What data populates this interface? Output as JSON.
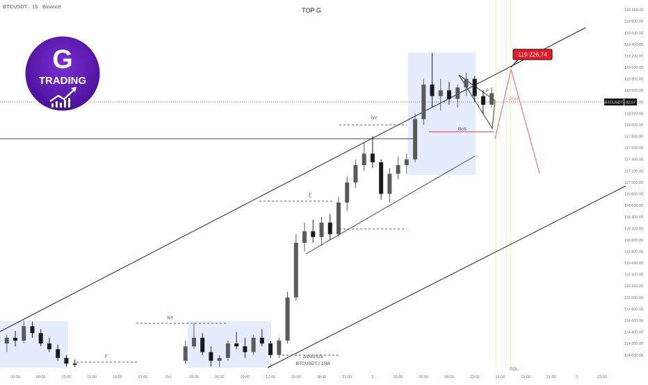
{
  "chart_data": {
    "type": "candlestick",
    "title": "TOP G",
    "symbol_label": "BTCUSDT · 15 · Binance",
    "up_color": "#5a5a5a",
    "down_color": "#1a1a1a",
    "x": [
      5,
      6,
      7,
      8,
      9,
      10,
      11,
      12,
      13,
      26,
      27,
      28,
      29,
      30,
      31,
      32,
      33,
      34,
      35,
      36,
      37,
      38,
      39,
      40,
      41,
      42,
      43,
      44,
      45,
      46,
      47,
      48,
      49,
      50,
      51,
      52,
      53,
      54,
      55,
      56,
      57,
      58,
      59,
      60,
      61,
      62
    ],
    "open": [
      114200,
      114300,
      114250,
      114500,
      114380,
      114200,
      114100,
      113950,
      113850,
      113900,
      114150,
      114300,
      114050,
      113900,
      113950,
      114200,
      114150,
      114050,
      114300,
      114200,
      114000,
      114250,
      115000,
      115950,
      116150,
      116050,
      116300,
      116100,
      116650,
      117000,
      117300,
      117500,
      117350,
      116800,
      117150,
      117300,
      117400,
      118100,
      118700,
      118500,
      118600,
      118450,
      118650,
      118800,
      118500,
      118350
    ],
    "high": [
      114350,
      114420,
      114600,
      114580,
      114450,
      114300,
      114180,
      114000,
      113920,
      114250,
      114560,
      114380,
      114150,
      114000,
      114250,
      114400,
      114300,
      114350,
      114450,
      114250,
      114300,
      115100,
      116100,
      116300,
      116350,
      116400,
      116450,
      116750,
      117100,
      117400,
      117700,
      117800,
      117400,
      117250,
      117450,
      117500,
      118200,
      118800,
      119250,
      118800,
      118750,
      118700,
      118900,
      118850,
      118600,
      118650
    ],
    "low": [
      114050,
      114150,
      114200,
      114300,
      114150,
      114050,
      113900,
      113800,
      113790,
      113850,
      114100,
      114000,
      113800,
      113790,
      113900,
      114100,
      113950,
      114000,
      114150,
      113950,
      113950,
      114200,
      114950,
      115800,
      115950,
      115900,
      116000,
      116050,
      116500,
      116900,
      117200,
      117250,
      116700,
      116650,
      117050,
      117150,
      117350,
      118000,
      118300,
      118250,
      118350,
      118300,
      118500,
      118400,
      118200,
      118300
    ],
    "close": [
      114300,
      114250,
      114500,
      114380,
      114200,
      114100,
      113950,
      113850,
      113830,
      114150,
      114300,
      114050,
      113900,
      113950,
      114200,
      114150,
      114050,
      114300,
      114200,
      114000,
      114250,
      115000,
      115950,
      116150,
      116050,
      116300,
      116100,
      116650,
      117000,
      117300,
      117500,
      117350,
      116800,
      117150,
      117300,
      117400,
      118100,
      118700,
      118500,
      118600,
      118450,
      118650,
      118800,
      118500,
      118350,
      118550
    ],
    "xlim": [
      4.2,
      74.9
    ],
    "xticks": [
      {
        "value": 6,
        "label": "06:00"
      },
      {
        "value": 9,
        "label": "09:00"
      },
      {
        "value": 12,
        "label": "12:00"
      },
      {
        "value": 15,
        "label": "15:00"
      },
      {
        "value": 18,
        "label": "18:00"
      },
      {
        "value": 21,
        "label": "21:00"
      },
      {
        "value": 24,
        "label": "Oct"
      },
      {
        "value": 27,
        "label": "03:00"
      },
      {
        "value": 30,
        "label": "06:00"
      },
      {
        "value": 33,
        "label": "09:00"
      },
      {
        "value": 36,
        "label": "12:00"
      },
      {
        "value": 39,
        "label": "15:00"
      },
      {
        "value": 42,
        "label": "18:00"
      },
      {
        "value": 45,
        "label": "21:00"
      },
      {
        "value": 48,
        "label": "2"
      },
      {
        "value": 51,
        "label": "03:00"
      },
      {
        "value": 54,
        "label": "06:00"
      },
      {
        "value": 57,
        "label": "09:00"
      },
      {
        "value": 60,
        "label": "12:00"
      },
      {
        "value": 63,
        "label": "15:00"
      },
      {
        "value": 66,
        "label": "18:00"
      },
      {
        "value": 69,
        "label": "21:00"
      },
      {
        "value": 72,
        "label": "3"
      },
      {
        "value": 75,
        "label": "03:00"
      }
    ],
    "ylim": [
      113780,
      120170
    ],
    "yticks": [
      {
        "value": 114000,
        "label": "114 000.00"
      },
      {
        "value": 114200,
        "label": "114 200.00"
      },
      {
        "value": 114400,
        "label": "114 400.00"
      },
      {
        "value": 114600,
        "label": "114 600.00"
      },
      {
        "value": 114800,
        "label": "114 800.00"
      },
      {
        "value": 115000,
        "label": "115 000.00"
      },
      {
        "value": 115200,
        "label": "115 200.00"
      },
      {
        "value": 115400,
        "label": "115 400.00"
      },
      {
        "value": 115600,
        "label": "115 600.00"
      },
      {
        "value": 115800,
        "label": "115 800.00"
      },
      {
        "value": 116000,
        "label": "116 000.00"
      },
      {
        "value": 116200,
        "label": "116 200.00"
      },
      {
        "value": 116400,
        "label": "116 400.00"
      },
      {
        "value": 116600,
        "label": "116 600.00"
      },
      {
        "value": 116800,
        "label": "116 800.00"
      },
      {
        "value": 117000,
        "label": "117 000.00"
      },
      {
        "value": 117200,
        "label": "117 200.00"
      },
      {
        "value": 117400,
        "label": "117 400.00"
      },
      {
        "value": 117600,
        "label": "117 600.00"
      },
      {
        "value": 117800,
        "label": "117 800.00"
      },
      {
        "value": 118000,
        "label": "118 000.00"
      },
      {
        "value": 118200,
        "label": "118 200.00"
      },
      {
        "value": 118400,
        "label": "118 400.00"
      },
      {
        "value": 118600,
        "label": "118 600.00"
      },
      {
        "value": 118800,
        "label": "118 800.00"
      },
      {
        "value": 119000,
        "label": "119 000.00"
      },
      {
        "value": 119200,
        "label": "119 200.00"
      },
      {
        "value": 119400,
        "label": "119 400.00"
      },
      {
        "value": 119600,
        "label": "119 600.00"
      },
      {
        "value": 119800,
        "label": "119 800.00"
      },
      {
        "value": 120000,
        "label": "120 000.00"
      }
    ],
    "target_label": {
      "value": 119226.74,
      "label": "119 226,74"
    },
    "price_tag": {
      "symbol": "BTCUSDT",
      "countdown": "02:07"
    },
    "annotations": {
      "ny_1": "NY",
      "ny_2": "NY",
      "f_1": "F",
      "f_2": "F",
      "bos": "BoS",
      "pdh": "PDH",
      "pdl": "PDL",
      "eq": "Ƹ",
      "date": "2/10/2025",
      "watermark": "BTCUSDT | 15M"
    }
  },
  "logo": {
    "letter": "G",
    "text": "TRADING"
  }
}
